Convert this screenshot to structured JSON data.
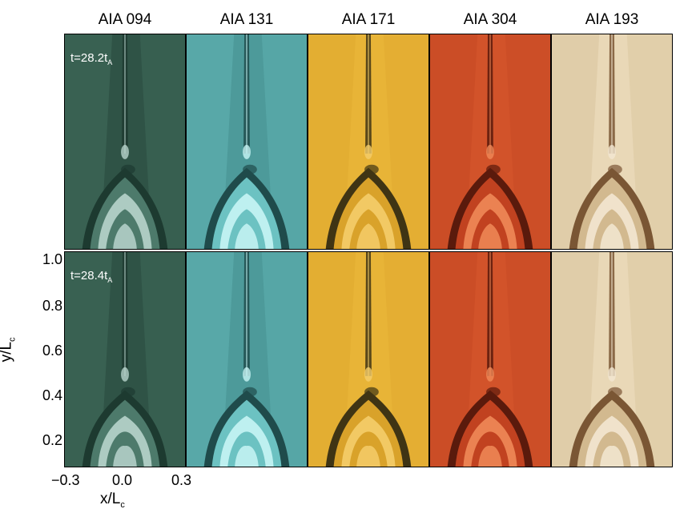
{
  "columns": [
    {
      "title": "AIA 094",
      "bg": "#2f5346",
      "mid": "#4d7a6b",
      "light": "#b8d4cc",
      "dark": "#1d3a30"
    },
    {
      "title": "AIA 131",
      "bg": "#4d9a9a",
      "mid": "#6cc2c2",
      "light": "#c8f5f5",
      "dark": "#1f4b4b"
    },
    {
      "title": "AIA 171",
      "bg": "#e8b437",
      "mid": "#d9a22a",
      "light": "#f4cd6a",
      "dark": "#3f3414"
    },
    {
      "title": "AIA 304",
      "bg": "#d2532a",
      "mid": "#c14220",
      "light": "#f08a58",
      "dark": "#5a1a0c"
    },
    {
      "title": "AIA 193",
      "bg": "#e9d8b7",
      "mid": "#d2b98f",
      "light": "#f3e7d2",
      "dark": "#7a5634"
    }
  ],
  "rows": [
    {
      "time_main": "t=28.2t",
      "time_sub": "A"
    },
    {
      "time_main": "t=28.4t",
      "time_sub": "A"
    }
  ],
  "yaxis": {
    "label_main": "y/L",
    "label_sub": "c",
    "ticks": [
      "1.0",
      "0.8",
      "0.6",
      "0.4",
      "0.2"
    ]
  },
  "xaxis": {
    "label_main": "x/L",
    "label_sub": "c",
    "ticks": [
      "−0.3",
      "0.0",
      "0.3"
    ]
  }
}
